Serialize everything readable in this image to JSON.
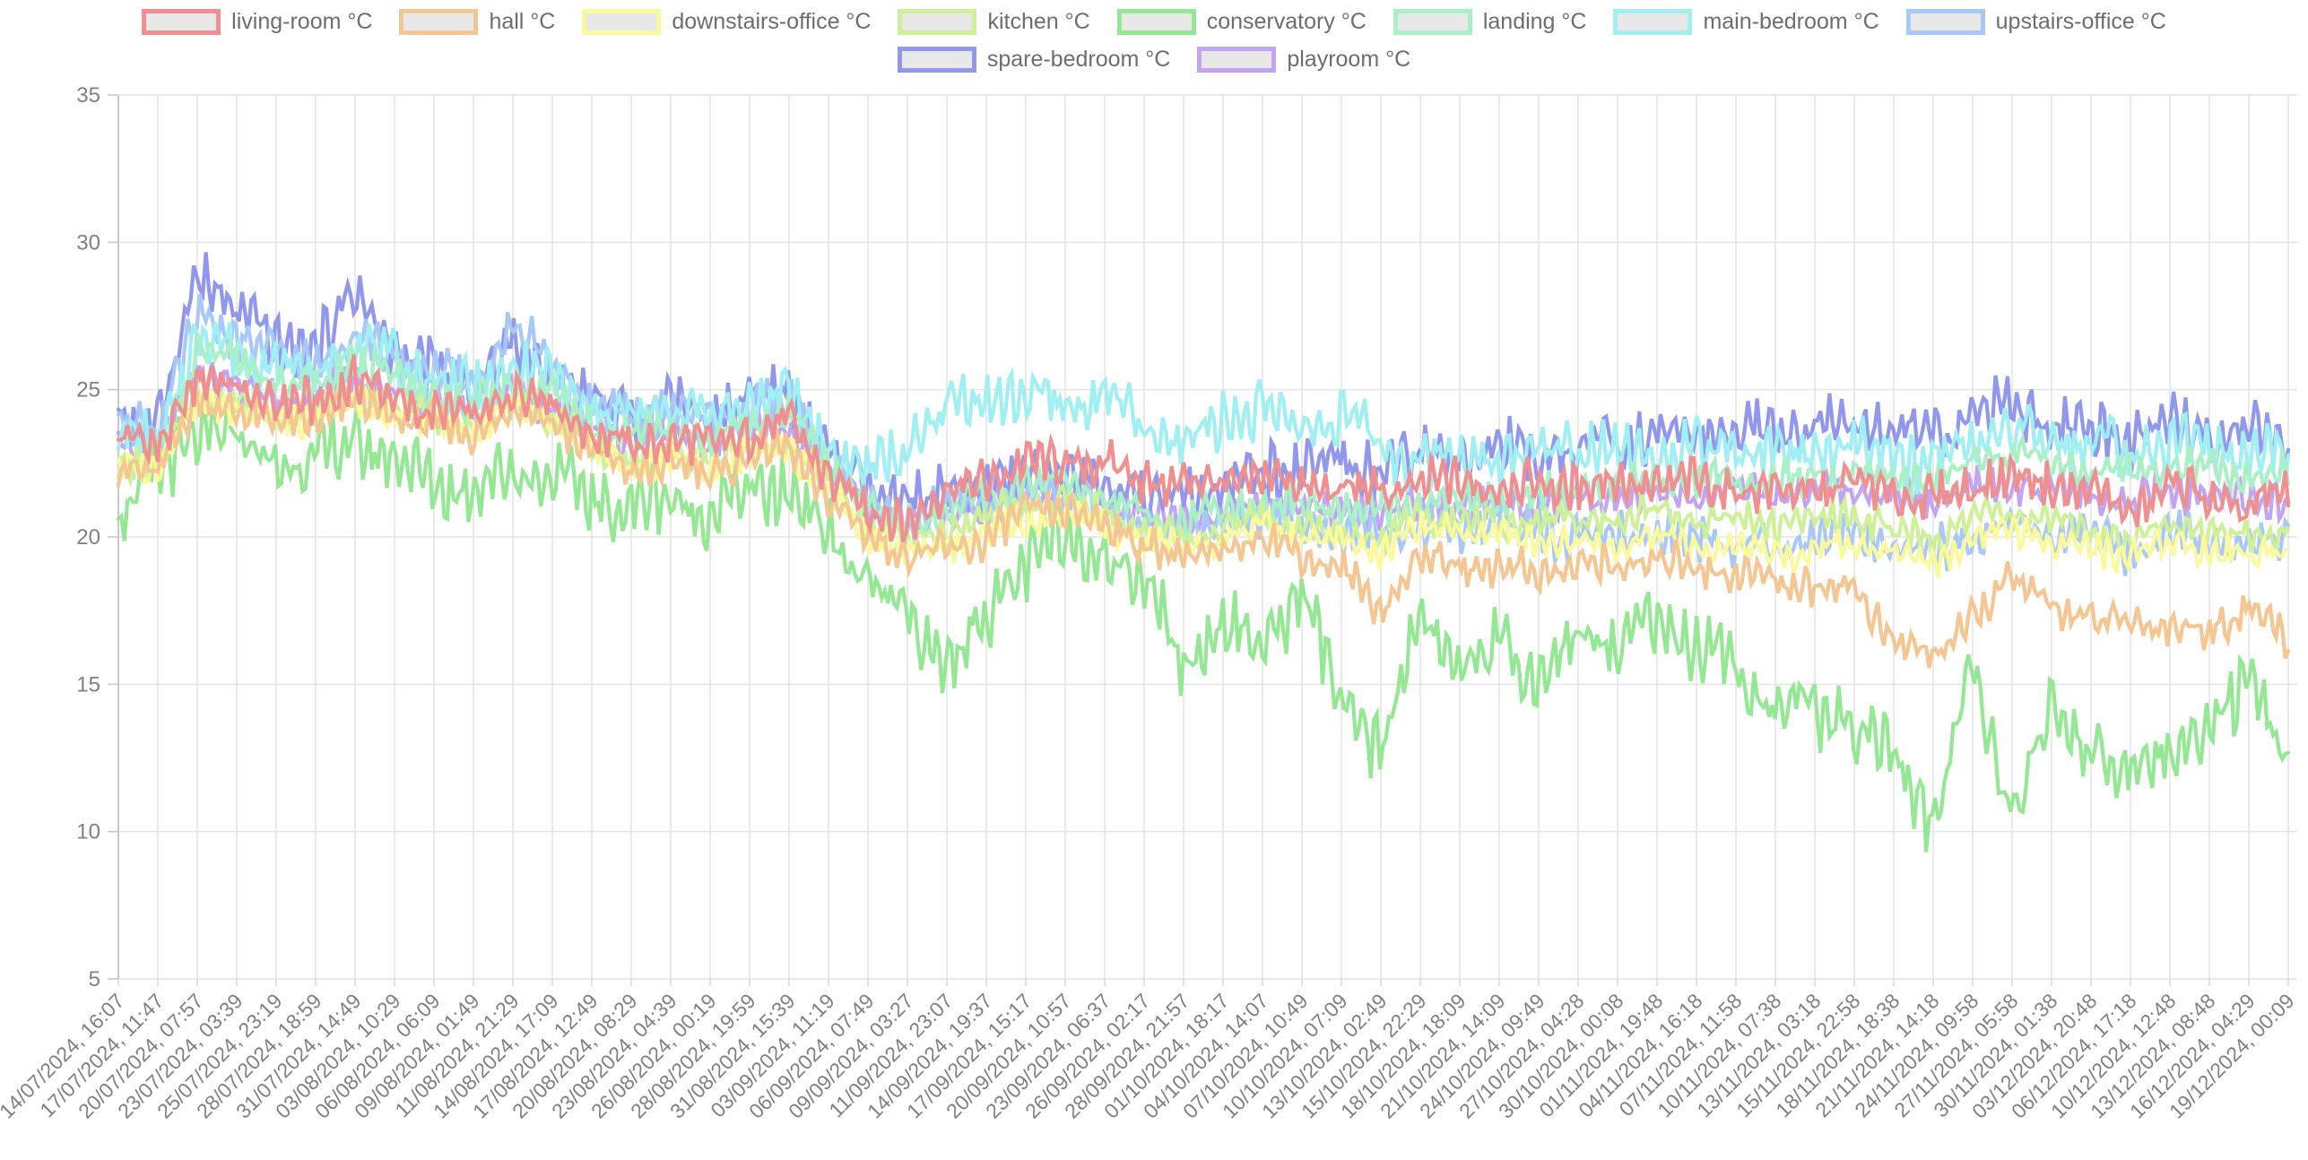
{
  "page": {
    "background": "#ffffff"
  },
  "legend": {
    "swatch_fill": "#e8e8e8",
    "text_color": "#6b6e71"
  },
  "chart_data": {
    "type": "line",
    "title": "",
    "xlabel": "",
    "ylabel": "",
    "unit": "°C",
    "grid": true,
    "legend_position": "top",
    "ylim": [
      5,
      35
    ],
    "y_ticks": [
      35,
      30,
      25,
      20,
      15,
      10,
      5
    ],
    "x_labels": [
      "14/07/2024, 16:07",
      "17/07/2024, 11:47",
      "20/07/2024, 07:57",
      "23/07/2024, 03:39",
      "25/07/2024, 23:19",
      "28/07/2024, 18:59",
      "31/07/2024, 14:49",
      "03/08/2024, 10:29",
      "06/08/2024, 06:09",
      "09/08/2024, 01:49",
      "11/08/2024, 21:29",
      "14/08/2024, 17:09",
      "17/08/2024, 12:49",
      "20/08/2024, 08:29",
      "23/08/2024, 04:39",
      "26/08/2024, 00:19",
      "28/08/2024, 19:59",
      "31/08/2024, 15:39",
      "03/09/2024, 11:19",
      "06/09/2024, 07:49",
      "09/09/2024, 03:27",
      "11/09/2024, 23:07",
      "14/09/2024, 19:37",
      "17/09/2024, 15:17",
      "20/09/2024, 10:57",
      "23/09/2024, 06:37",
      "26/09/2024, 02:17",
      "28/09/2024, 21:57",
      "01/10/2024, 18:17",
      "04/10/2024, 14:07",
      "07/10/2024, 10:49",
      "10/10/2024, 07:09",
      "13/10/2024, 02:49",
      "15/10/2024, 22:29",
      "18/10/2024, 18:09",
      "21/10/2024, 14:09",
      "24/10/2024, 09:49",
      "27/10/2024, 04:28",
      "30/10/2024, 00:08",
      "01/11/2024, 19:48",
      "04/11/2024, 16:18",
      "07/11/2024, 11:58",
      "10/11/2024, 07:38",
      "13/11/2024, 03:18",
      "15/11/2024, 22:58",
      "18/11/2024, 18:38",
      "21/11/2024, 14:18",
      "24/11/2024, 09:58",
      "27/11/2024, 05:58",
      "30/11/2024, 01:38",
      "03/12/2024, 20:48",
      "06/12/2024, 17:18",
      "10/12/2024, 12:48",
      "13/12/2024, 08:48",
      "16/12/2024, 04:29",
      "19/12/2024, 00:09"
    ],
    "series": [
      {
        "name": "living-room °C",
        "color": "#ef8f8f",
        "amplitude": 0.85,
        "values": [
          23.3,
          23.2,
          25.2,
          25.2,
          24.4,
          24.6,
          25.3,
          24.7,
          24.2,
          24.0,
          25.0,
          24.6,
          23.6,
          23.0,
          23.4,
          23.0,
          23.6,
          23.8,
          22.2,
          20.8,
          20.6,
          21.5,
          22.0,
          22.4,
          22.6,
          22.4,
          22.0,
          21.8,
          21.8,
          22.0,
          21.8,
          21.6,
          21.5,
          21.8,
          21.8,
          21.8,
          21.7,
          21.8,
          21.8,
          21.8,
          21.8,
          21.7,
          21.5,
          21.6,
          21.8,
          21.5,
          21.2,
          21.8,
          22.0,
          21.8,
          21.5,
          20.8,
          21.8,
          21.2,
          20.9,
          21.5
        ]
      },
      {
        "name": "hall °C",
        "color": "#f5c592",
        "amplitude": 0.7,
        "values": [
          22.3,
          22.3,
          24.6,
          24.4,
          23.8,
          24.0,
          24.6,
          24.1,
          23.8,
          23.5,
          24.4,
          24.0,
          22.9,
          22.2,
          22.5,
          22.1,
          22.8,
          23.0,
          21.3,
          20.0,
          19.5,
          19.4,
          20.0,
          20.8,
          21.0,
          20.4,
          19.8,
          19.3,
          19.5,
          20.0,
          19.5,
          18.8,
          17.6,
          19.3,
          19.0,
          19.0,
          18.8,
          19.0,
          19.0,
          19.2,
          19.0,
          18.8,
          18.5,
          18.4,
          18.2,
          16.5,
          15.9,
          17.3,
          18.5,
          17.8,
          17.0,
          17.3,
          16.8,
          17.0,
          17.5,
          16.6
        ]
      },
      {
        "name": "downstairs-office °C",
        "color": "#fafa9d",
        "amplitude": 0.6,
        "values": [
          22.5,
          22.4,
          24.6,
          24.4,
          23.9,
          24.0,
          24.6,
          24.2,
          23.9,
          23.6,
          24.3,
          23.9,
          22.9,
          22.4,
          22.6,
          22.3,
          22.9,
          23.0,
          21.6,
          20.1,
          19.6,
          19.7,
          20.2,
          20.5,
          20.7,
          20.3,
          19.9,
          19.6,
          20.0,
          20.3,
          20.0,
          19.8,
          19.5,
          20.3,
          20.3,
          20.0,
          20.0,
          19.8,
          19.8,
          20.0,
          19.7,
          19.6,
          19.4,
          19.6,
          19.8,
          19.5,
          19.1,
          20.0,
          20.3,
          19.9,
          19.6,
          19.4,
          19.9,
          19.6,
          19.3,
          19.8
        ]
      },
      {
        "name": "kitchen °C",
        "color": "#cdf098",
        "amplitude": 0.6,
        "values": [
          22.6,
          22.5,
          24.8,
          24.6,
          24.1,
          24.2,
          24.8,
          24.4,
          24.1,
          23.8,
          24.5,
          24.1,
          23.1,
          22.6,
          22.8,
          22.5,
          23.1,
          23.2,
          21.8,
          20.4,
          19.9,
          20.2,
          20.7,
          21.0,
          21.2,
          20.8,
          20.3,
          20.0,
          20.3,
          20.6,
          20.3,
          20.0,
          19.9,
          20.6,
          20.6,
          20.3,
          20.7,
          20.5,
          20.7,
          20.9,
          20.6,
          20.6,
          20.4,
          20.6,
          20.8,
          20.2,
          19.8,
          20.7,
          20.9,
          20.4,
          20.2,
          20.0,
          20.4,
          20.2,
          20.0,
          20.3
        ]
      },
      {
        "name": "conservatory °C",
        "color": "#94e894",
        "amplitude": 1.25,
        "values": [
          21.0,
          22.0,
          23.6,
          23.2,
          22.6,
          22.5,
          23.4,
          22.5,
          22.0,
          21.5,
          22.4,
          22.0,
          21.3,
          21.0,
          21.3,
          20.8,
          21.5,
          21.7,
          20.0,
          18.5,
          17.0,
          15.8,
          17.2,
          19.2,
          20.0,
          19.5,
          18.5,
          15.8,
          17.0,
          16.5,
          18.0,
          14.5,
          12.5,
          17.5,
          15.5,
          16.5,
          15.0,
          16.8,
          16.5,
          17.3,
          16.3,
          15.4,
          14.4,
          13.9,
          13.8,
          12.5,
          10.2,
          15.6,
          10.6,
          14.0,
          12.8,
          11.8,
          12.8,
          13.5,
          15.0,
          12.6
        ]
      },
      {
        "name": "landing °C",
        "color": "#aaf0c6",
        "amplitude": 0.7,
        "values": [
          22.4,
          22.6,
          26.4,
          26.0,
          25.2,
          25.0,
          26.2,
          25.3,
          24.8,
          24.4,
          25.4,
          24.8,
          23.9,
          23.4,
          23.8,
          23.3,
          24.0,
          24.2,
          22.4,
          20.9,
          20.4,
          20.9,
          21.4,
          21.8,
          21.8,
          21.4,
          20.9,
          20.6,
          20.9,
          21.1,
          21.1,
          20.9,
          20.9,
          21.1,
          21.3,
          21.3,
          21.4,
          21.6,
          21.8,
          21.9,
          22.0,
          22.0,
          21.9,
          22.0,
          22.3,
          22.1,
          21.9,
          22.5,
          22.8,
          22.5,
          22.3,
          22.1,
          22.5,
          22.3,
          22.1,
          22.3
        ]
      },
      {
        "name": "main-bedroom °C",
        "color": "#a0eff2",
        "amplitude": 1.05,
        "values": [
          23.3,
          23.2,
          26.8,
          26.4,
          25.7,
          25.5,
          26.6,
          25.9,
          25.3,
          24.8,
          25.8,
          25.3,
          24.3,
          23.9,
          24.5,
          24.0,
          24.7,
          24.7,
          23.1,
          22.1,
          23.0,
          24.4,
          24.8,
          24.7,
          24.5,
          24.8,
          23.6,
          23.2,
          24.0,
          24.4,
          23.6,
          24.3,
          23.0,
          22.6,
          22.8,
          22.6,
          23.0,
          23.2,
          23.0,
          22.7,
          22.9,
          23.0,
          22.6,
          22.8,
          23.0,
          22.8,
          22.5,
          23.3,
          23.5,
          23.0,
          23.3,
          22.8,
          23.3,
          23.0,
          22.8,
          23.0
        ]
      },
      {
        "name": "upstairs-office °C",
        "color": "#a8c8f7",
        "amplitude": 0.85,
        "values": [
          24.0,
          23.7,
          27.3,
          26.9,
          26.1,
          25.9,
          26.9,
          26.1,
          25.6,
          25.1,
          27.0,
          26.0,
          24.4,
          23.9,
          24.4,
          23.9,
          24.5,
          24.5,
          22.6,
          21.1,
          20.6,
          20.9,
          21.1,
          21.4,
          21.4,
          20.9,
          20.4,
          20.1,
          20.4,
          20.6,
          20.4,
          20.1,
          20.1,
          20.4,
          20.4,
          20.4,
          20.1,
          20.1,
          20.1,
          20.1,
          19.9,
          19.9,
          19.6,
          19.9,
          20.1,
          19.9,
          19.4,
          20.1,
          20.4,
          20.1,
          19.9,
          19.6,
          20.1,
          19.9,
          19.6,
          20.1
        ]
      },
      {
        "name": "spare-bedroom °C",
        "color": "#9097ec",
        "amplitude": 1.05,
        "values": [
          24.1,
          23.9,
          28.8,
          27.8,
          26.3,
          26.5,
          28.2,
          26.4,
          25.6,
          25.1,
          26.5,
          25.6,
          24.6,
          24.1,
          24.6,
          24.1,
          24.8,
          24.8,
          22.9,
          21.4,
          21.1,
          21.4,
          21.6,
          22.1,
          22.1,
          21.6,
          21.4,
          21.1,
          21.6,
          22.1,
          22.4,
          22.6,
          22.4,
          22.6,
          22.9,
          22.9,
          22.9,
          23.1,
          23.4,
          23.4,
          23.6,
          23.6,
          23.4,
          23.6,
          23.9,
          23.6,
          23.4,
          24.1,
          24.4,
          23.9,
          23.6,
          23.4,
          23.9,
          23.6,
          23.4,
          23.6
        ]
      },
      {
        "name": "playroom °C",
        "color": "#c2a4f2",
        "amplitude": 0.7,
        "values": [
          23.1,
          22.9,
          25.6,
          25.1,
          24.6,
          24.6,
          25.4,
          24.9,
          24.6,
          24.1,
          24.9,
          24.4,
          23.6,
          23.1,
          23.4,
          23.1,
          23.6,
          23.6,
          22.1,
          20.9,
          20.6,
          20.9,
          21.1,
          21.4,
          21.4,
          21.1,
          20.9,
          20.6,
          20.9,
          21.1,
          21.1,
          20.9,
          20.9,
          21.1,
          21.1,
          21.1,
          21.1,
          21.1,
          21.4,
          21.4,
          21.4,
          21.6,
          21.4,
          21.6,
          21.6,
          21.4,
          21.1,
          21.6,
          21.9,
          21.6,
          21.4,
          21.1,
          21.6,
          21.4,
          21.1,
          21.4
        ]
      }
    ]
  }
}
